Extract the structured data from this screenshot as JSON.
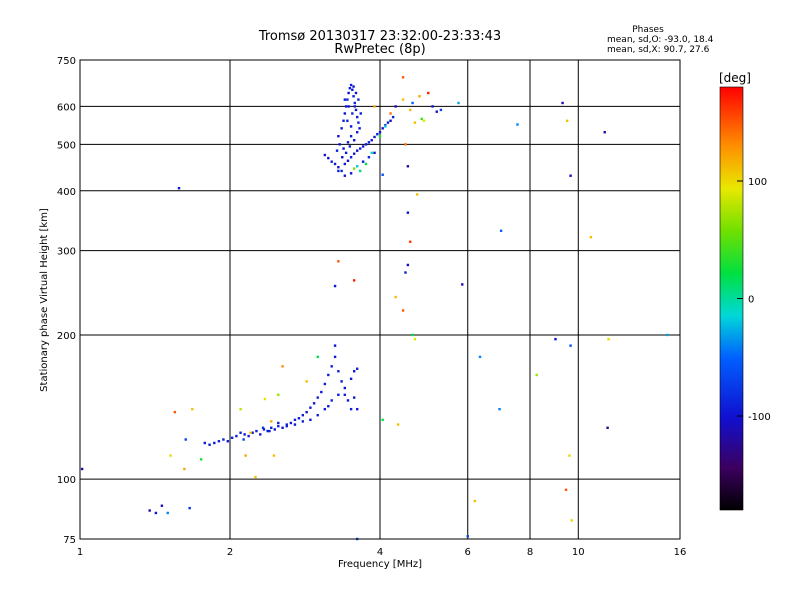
{
  "chart_data": {
    "type": "scatter",
    "title": "Tromsø 20130317 23:32:00-23:33:43",
    "subtitle": "RwPretec (8p)",
    "phases": {
      "heading": "Phases",
      "line1": "mean, sd,O: -93.0, 18.4",
      "line2": "mean, sd,X:  90.7, 27.6"
    },
    "xlabel": "Frequency [MHz]",
    "ylabel": "Stationary phase Virtual Height [km]",
    "x_scale": "log",
    "y_scale": "log",
    "xlim": [
      1,
      16
    ],
    "ylim": [
      75,
      750
    ],
    "x_ticks": [
      {
        "value": 1,
        "label": "1"
      },
      {
        "value": 2,
        "label": "2"
      },
      {
        "value": 4,
        "label": "4"
      },
      {
        "value": 6,
        "label": "6"
      },
      {
        "value": 8,
        "label": "8"
      },
      {
        "value": 10,
        "label": "10"
      },
      {
        "value": 16,
        "label": "16"
      }
    ],
    "y_ticks": [
      {
        "value": 75,
        "label": "75"
      },
      {
        "value": 100,
        "label": "100"
      },
      {
        "value": 200,
        "label": "200"
      },
      {
        "value": 300,
        "label": "300"
      },
      {
        "value": 400,
        "label": "400"
      },
      {
        "value": 500,
        "label": "500"
      },
      {
        "value": 600,
        "label": "600"
      },
      {
        "value": 750,
        "label": "750"
      }
    ],
    "grid": true,
    "colorbar": {
      "label": "[deg]",
      "range": [
        -180,
        180
      ],
      "ticks": [
        {
          "value": 100,
          "label": "100"
        },
        {
          "value": 0,
          "label": "0"
        },
        {
          "value": -100,
          "label": "-100"
        }
      ]
    },
    "points": [
      [
        1.01,
        105,
        -120
      ],
      [
        1.38,
        86,
        -110
      ],
      [
        1.42,
        85,
        -100
      ],
      [
        1.46,
        88,
        -110
      ],
      [
        1.5,
        85,
        -40
      ],
      [
        1.58,
        405,
        -100
      ],
      [
        1.52,
        112,
        100
      ],
      [
        1.55,
        138,
        150
      ],
      [
        1.62,
        105,
        120
      ],
      [
        1.63,
        121,
        -70
      ],
      [
        1.66,
        87,
        -80
      ],
      [
        1.68,
        140,
        110
      ],
      [
        1.75,
        110,
        30
      ],
      [
        1.78,
        119,
        -95
      ],
      [
        1.82,
        118,
        -95
      ],
      [
        1.86,
        119,
        -95
      ],
      [
        1.9,
        120,
        -90
      ],
      [
        1.94,
        121,
        -90
      ],
      [
        1.98,
        120,
        -95
      ],
      [
        2.02,
        122,
        -90
      ],
      [
        2.06,
        123,
        -95
      ],
      [
        2.1,
        125,
        -90
      ],
      [
        2.14,
        124,
        -95
      ],
      [
        2.18,
        123,
        -90
      ],
      [
        2.22,
        125,
        -95
      ],
      [
        2.26,
        126,
        -90
      ],
      [
        2.3,
        124,
        -95
      ],
      [
        2.34,
        127,
        -90
      ],
      [
        2.38,
        126,
        -95
      ],
      [
        2.42,
        128,
        -90
      ],
      [
        2.46,
        127,
        -95
      ],
      [
        2.5,
        129,
        -90
      ],
      [
        2.55,
        128,
        -95
      ],
      [
        2.6,
        130,
        -90
      ],
      [
        2.65,
        131,
        -95
      ],
      [
        2.7,
        133,
        -90
      ],
      [
        2.75,
        134,
        -95
      ],
      [
        2.8,
        136,
        -90
      ],
      [
        2.85,
        138,
        -95
      ],
      [
        2.9,
        141,
        -90
      ],
      [
        2.95,
        144,
        -95
      ],
      [
        3.0,
        148,
        -90
      ],
      [
        3.05,
        152,
        -95
      ],
      [
        3.1,
        158,
        -90
      ],
      [
        3.15,
        165,
        -95
      ],
      [
        3.2,
        172,
        -90
      ],
      [
        3.25,
        180,
        -95
      ],
      [
        3.3,
        168,
        -90
      ],
      [
        3.35,
        160,
        -95
      ],
      [
        3.4,
        150,
        -90
      ],
      [
        3.45,
        146,
        -95
      ],
      [
        3.5,
        162,
        -90
      ],
      [
        3.55,
        168,
        -95
      ],
      [
        3.6,
        170,
        -90
      ],
      [
        3.55,
        148,
        -95
      ],
      [
        3.5,
        140,
        -90
      ],
      [
        3.3,
        150,
        -95
      ],
      [
        3.2,
        146,
        -90
      ],
      [
        3.1,
        140,
        -95
      ],
      [
        3.0,
        136,
        -90
      ],
      [
        2.9,
        133,
        -95
      ],
      [
        2.8,
        132,
        -90
      ],
      [
        2.7,
        130,
        -95
      ],
      [
        2.6,
        129,
        -90
      ],
      [
        2.5,
        131,
        -95
      ],
      [
        2.4,
        126,
        -90
      ],
      [
        3.25,
        190,
        -100
      ],
      [
        3.4,
        155,
        -100
      ],
      [
        3.6,
        140,
        -95
      ],
      [
        3.15,
        142,
        -95
      ],
      [
        2.33,
        128,
        -80
      ],
      [
        2.13,
        121,
        -70
      ],
      [
        2.42,
        132,
        120
      ],
      [
        2.2,
        125,
        110
      ],
      [
        2.1,
        140,
        80
      ],
      [
        2.35,
        147,
        90
      ],
      [
        2.5,
        150,
        70
      ],
      [
        2.55,
        172,
        130
      ],
      [
        2.85,
        160,
        110
      ],
      [
        3.0,
        180,
        20
      ],
      [
        2.25,
        101,
        110
      ],
      [
        2.45,
        112,
        110
      ],
      [
        2.15,
        112,
        120
      ],
      [
        3.25,
        253,
        -100
      ],
      [
        3.3,
        285,
        150
      ],
      [
        3.55,
        260,
        170
      ],
      [
        4.05,
        133,
        20
      ],
      [
        4.35,
        130,
        110
      ],
      [
        4.3,
        240,
        110
      ],
      [
        4.45,
        225,
        150
      ],
      [
        4.65,
        200,
        20
      ],
      [
        4.7,
        196,
        90
      ],
      [
        4.5,
        270,
        -90
      ],
      [
        4.55,
        280,
        -110
      ],
      [
        4.6,
        313,
        160
      ],
      [
        4.55,
        360,
        -100
      ],
      [
        4.75,
        393,
        110
      ],
      [
        4.05,
        432,
        -60
      ],
      [
        4.55,
        450,
        -120
      ],
      [
        3.1,
        475,
        -100
      ],
      [
        3.15,
        468,
        -100
      ],
      [
        3.2,
        460,
        -90
      ],
      [
        3.25,
        455,
        -95
      ],
      [
        3.3,
        448,
        -100
      ],
      [
        3.35,
        440,
        -90
      ],
      [
        3.4,
        455,
        -95
      ],
      [
        3.45,
        462,
        -100
      ],
      [
        3.5,
        470,
        -90
      ],
      [
        3.55,
        478,
        -95
      ],
      [
        3.6,
        485,
        -100
      ],
      [
        3.65,
        490,
        -90
      ],
      [
        3.7,
        495,
        -95
      ],
      [
        3.75,
        500,
        -100
      ],
      [
        3.8,
        505,
        -90
      ],
      [
        3.85,
        510,
        -95
      ],
      [
        3.9,
        518,
        -100
      ],
      [
        3.95,
        525,
        -90
      ],
      [
        4.0,
        530,
        -95
      ],
      [
        4.05,
        540,
        -100
      ],
      [
        4.1,
        548,
        -90
      ],
      [
        4.15,
        555,
        -95
      ],
      [
        4.2,
        560,
        -100
      ],
      [
        4.25,
        570,
        -90
      ],
      [
        3.3,
        520,
        -100
      ],
      [
        3.35,
        540,
        -95
      ],
      [
        3.38,
        560,
        -90
      ],
      [
        3.4,
        580,
        -100
      ],
      [
        3.42,
        600,
        -95
      ],
      [
        3.44,
        620,
        -90
      ],
      [
        3.46,
        640,
        -100
      ],
      [
        3.48,
        655,
        -95
      ],
      [
        3.5,
        665,
        -90
      ],
      [
        3.52,
        650,
        -100
      ],
      [
        3.54,
        630,
        -95
      ],
      [
        3.56,
        610,
        -90
      ],
      [
        3.58,
        590,
        -100
      ],
      [
        3.6,
        570,
        -95
      ],
      [
        3.62,
        555,
        -90
      ],
      [
        3.64,
        540,
        -100
      ],
      [
        3.5,
        520,
        -95
      ],
      [
        3.45,
        505,
        -90
      ],
      [
        3.38,
        490,
        -100
      ],
      [
        3.32,
        500,
        -95
      ],
      [
        3.28,
        485,
        -90
      ],
      [
        3.36,
        470,
        -100
      ],
      [
        3.42,
        480,
        -95
      ],
      [
        3.48,
        495,
        -90
      ],
      [
        3.55,
        510,
        -100
      ],
      [
        3.6,
        530,
        -95
      ],
      [
        3.52,
        580,
        -90
      ],
      [
        3.46,
        600,
        -100
      ],
      [
        3.4,
        620,
        -95
      ],
      [
        3.44,
        560,
        -90
      ],
      [
        3.5,
        545,
        -100
      ],
      [
        3.56,
        600,
        -95
      ],
      [
        3.62,
        620,
        -90
      ],
      [
        3.58,
        640,
        -100
      ],
      [
        3.54,
        660,
        -95
      ],
      [
        3.66,
        580,
        -90
      ],
      [
        3.3,
        440,
        -90
      ],
      [
        3.4,
        430,
        -95
      ],
      [
        3.5,
        435,
        -100
      ],
      [
        3.7,
        460,
        -95
      ],
      [
        3.8,
        470,
        -90
      ],
      [
        3.9,
        480,
        -100
      ],
      [
        3.6,
        450,
        -20
      ],
      [
        3.65,
        440,
        10
      ],
      [
        3.55,
        445,
        60
      ],
      [
        3.75,
        455,
        20
      ],
      [
        3.85,
        480,
        -10
      ],
      [
        4.0,
        520,
        30
      ],
      [
        4.1,
        545,
        -20
      ],
      [
        4.2,
        580,
        140
      ],
      [
        4.3,
        600,
        -110
      ],
      [
        4.45,
        690,
        150
      ],
      [
        4.6,
        590,
        110
      ],
      [
        4.8,
        630,
        120
      ],
      [
        5.0,
        640,
        170
      ],
      [
        5.1,
        600,
        -100
      ],
      [
        5.2,
        585,
        -110
      ],
      [
        4.9,
        560,
        90
      ],
      [
        4.7,
        555,
        110
      ],
      [
        4.65,
        610,
        -50
      ],
      [
        5.3,
        590,
        -70
      ],
      [
        4.45,
        620,
        110
      ],
      [
        3.9,
        600,
        120
      ],
      [
        4.5,
        500,
        140
      ],
      [
        5.85,
        255,
        -110
      ],
      [
        6.35,
        180,
        -40
      ],
      [
        6.2,
        90,
        110
      ],
      [
        6.0,
        76,
        -70
      ],
      [
        7.0,
        330,
        -50
      ],
      [
        7.55,
        550,
        -40
      ],
      [
        6.95,
        140,
        -40
      ],
      [
        8.25,
        165,
        70
      ],
      [
        9.0,
        196,
        -100
      ],
      [
        9.3,
        610,
        -110
      ],
      [
        9.45,
        95,
        150
      ],
      [
        9.6,
        112,
        100
      ],
      [
        9.7,
        82,
        100
      ],
      [
        9.65,
        190,
        -60
      ],
      [
        9.65,
        430,
        -110
      ],
      [
        9.5,
        560,
        110
      ],
      [
        10.6,
        320,
        110
      ],
      [
        11.3,
        530,
        -120
      ],
      [
        11.45,
        128,
        -130
      ],
      [
        11.5,
        196,
        100
      ],
      [
        15.1,
        200,
        -30
      ],
      [
        3.6,
        75,
        -60
      ],
      [
        4.85,
        565,
        40
      ],
      [
        5.75,
        610,
        -30
      ]
    ]
  }
}
